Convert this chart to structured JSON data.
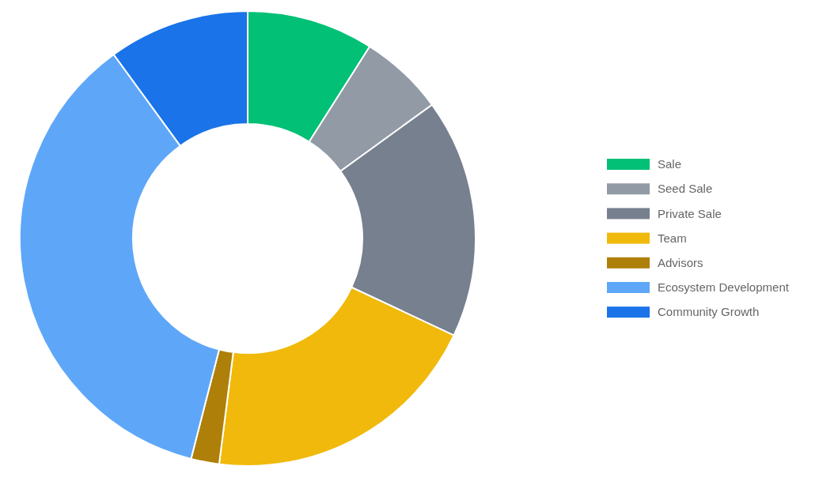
{
  "chart_data": {
    "type": "donut",
    "categories": [
      "Sale",
      "Seed Sale",
      "Private Sale",
      "Team",
      "Advisors",
      "Ecosystem Development",
      "Community Growth"
    ],
    "values": [
      9,
      6,
      17,
      20,
      2,
      36,
      10
    ],
    "colors": [
      "#02c076",
      "#929aa5",
      "#76808f",
      "#f0b90b",
      "#ae7f09",
      "#5ea7f8",
      "#1a73e8"
    ],
    "legend": "right"
  }
}
